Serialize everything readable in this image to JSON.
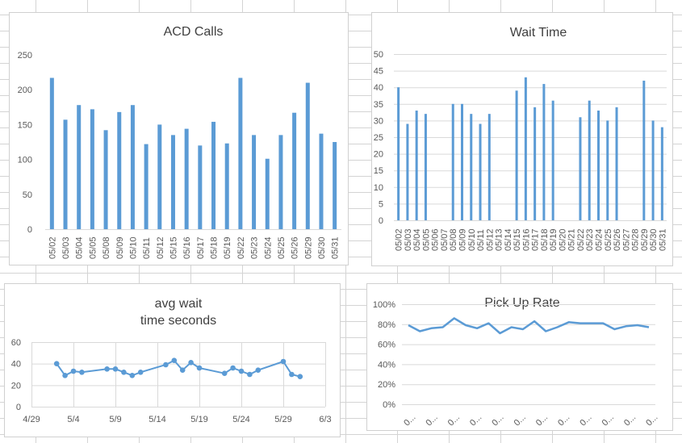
{
  "theme": {
    "bar_color": "#5B9BD5",
    "grid_color": "#d9d9d9",
    "axis_text": "#595959",
    "title_text": "#404040"
  },
  "chart_data": [
    {
      "type": "bar",
      "title": "ACD Calls",
      "categories": [
        "05/02",
        "05/03",
        "05/04",
        "05/05",
        "05/08",
        "05/09",
        "05/10",
        "05/11",
        "05/12",
        "05/15",
        "05/16",
        "05/17",
        "05/18",
        "05/19",
        "05/22",
        "05/23",
        "05/24",
        "05/25",
        "05/26",
        "05/29",
        "05/30",
        "05/31"
      ],
      "values": [
        217,
        157,
        178,
        172,
        142,
        168,
        178,
        122,
        150,
        135,
        144,
        120,
        154,
        123,
        217,
        135,
        101,
        135,
        167,
        210,
        137,
        125
      ],
      "ylim": [
        0,
        250
      ],
      "yticks": [
        "0",
        "50",
        "100",
        "150",
        "200",
        "250"
      ],
      "grid": false
    },
    {
      "type": "bar",
      "title": "Wait Time",
      "categories": [
        "05/02",
        "05/03",
        "05/04",
        "05/05",
        "05/06",
        "05/07",
        "05/08",
        "05/09",
        "05/10",
        "05/11",
        "05/12",
        "05/13",
        "05/14",
        "05/15",
        "05/16",
        "05/17",
        "05/18",
        "05/19",
        "05/20",
        "05/21",
        "05/22",
        "05/23",
        "05/24",
        "05/25",
        "05/26",
        "05/27",
        "05/28",
        "05/29",
        "05/30",
        "05/31"
      ],
      "values": [
        40,
        29,
        33,
        32,
        null,
        null,
        35,
        35,
        32,
        29,
        32,
        null,
        null,
        39,
        43,
        34,
        41,
        36,
        null,
        null,
        31,
        36,
        33,
        30,
        34,
        null,
        null,
        42,
        30,
        28
      ],
      "ylim": [
        0,
        50
      ],
      "yticks": [
        "0",
        "5",
        "10",
        "15",
        "20",
        "25",
        "30",
        "35",
        "40",
        "45",
        "50"
      ],
      "grid": true
    },
    {
      "type": "scatter",
      "title": "avg wait time seconds",
      "title_lines": [
        "avg wait",
        "time seconds"
      ],
      "x_axis": "date",
      "x": [
        "2017-05-02",
        "2017-05-03",
        "2017-05-04",
        "2017-05-05",
        "2017-05-08",
        "2017-05-09",
        "2017-05-10",
        "2017-05-11",
        "2017-05-12",
        "2017-05-15",
        "2017-05-16",
        "2017-05-17",
        "2017-05-18",
        "2017-05-19",
        "2017-05-22",
        "2017-05-23",
        "2017-05-24",
        "2017-05-25",
        "2017-05-26",
        "2017-05-29",
        "2017-05-30",
        "2017-05-31"
      ],
      "y": [
        40,
        29,
        33,
        32,
        35,
        35,
        32,
        29,
        32,
        39,
        43,
        34,
        41,
        36,
        31,
        36,
        33,
        30,
        34,
        42,
        30,
        28
      ],
      "xlim": [
        "2017-04-29",
        "2017-06-03"
      ],
      "xticks": [
        {
          "date": "2017-04-29",
          "label": "4/29"
        },
        {
          "date": "2017-05-04",
          "label": "5/4"
        },
        {
          "date": "2017-05-09",
          "label": "5/9"
        },
        {
          "date": "2017-05-14",
          "label": "5/14"
        },
        {
          "date": "2017-05-19",
          "label": "5/19"
        },
        {
          "date": "2017-05-24",
          "label": "5/24"
        },
        {
          "date": "2017-05-29",
          "label": "5/29"
        },
        {
          "date": "2017-06-03",
          "label": "6/3"
        }
      ],
      "ylim": [
        0,
        60
      ],
      "yticks": [
        "0",
        "20",
        "40",
        "60"
      ],
      "grid": true
    },
    {
      "type": "line",
      "title": "Pick Up Rate",
      "values": [
        0.79,
        0.73,
        0.76,
        0.77,
        0.86,
        0.79,
        0.76,
        0.81,
        0.71,
        0.77,
        0.75,
        0.83,
        0.73,
        0.77,
        0.82,
        0.81,
        0.81,
        0.81,
        0.75,
        0.78,
        0.79,
        0.77
      ],
      "ylim": [
        0,
        1
      ],
      "yticks": [
        "0%",
        "20%",
        "40%",
        "60%",
        "80%",
        "100%"
      ],
      "xtick_label": "0...",
      "xtick_count": 12,
      "grid": true
    }
  ]
}
